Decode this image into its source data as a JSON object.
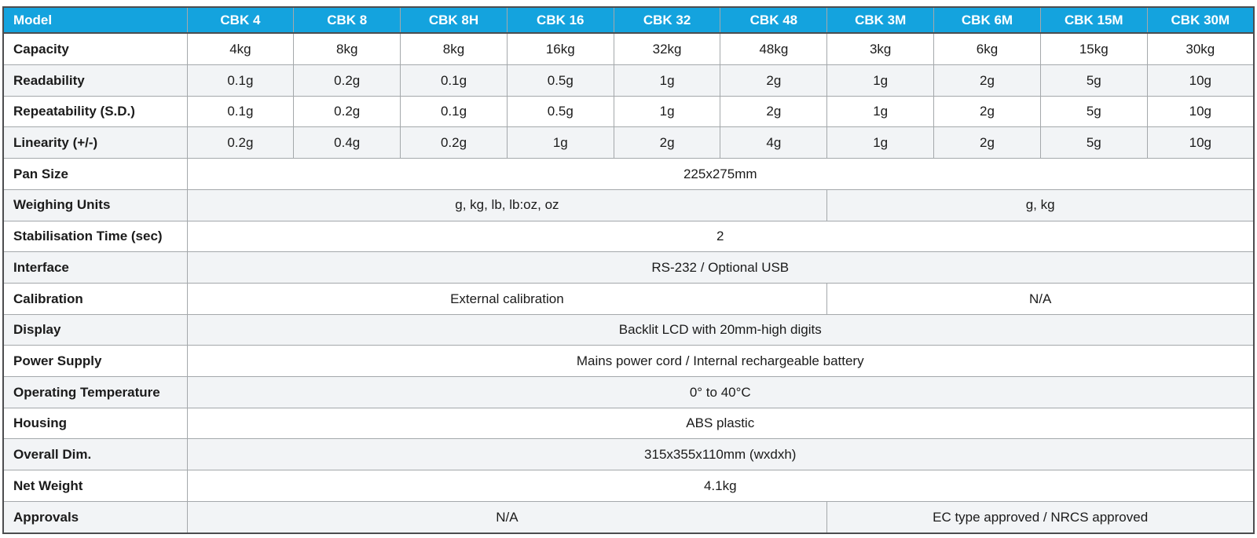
{
  "table": {
    "header": {
      "label": "Model",
      "models": [
        "CBK 4",
        "CBK 8",
        "CBK 8H",
        "CBK 16",
        "CBK 32",
        "CBK 48",
        "CBK 3M",
        "CBK 6M",
        "CBK 15M",
        "CBK 30M"
      ]
    },
    "spec_rows": [
      {
        "label": "Capacity",
        "type": "per-model",
        "values": [
          "4kg",
          "8kg",
          "8kg",
          "16kg",
          "32kg",
          "48kg",
          "3kg",
          "6kg",
          "15kg",
          "30kg"
        ]
      },
      {
        "label": "Readability",
        "type": "per-model",
        "values": [
          "0.1g",
          "0.2g",
          "0.1g",
          "0.5g",
          "1g",
          "2g",
          "1g",
          "2g",
          "5g",
          "10g"
        ]
      },
      {
        "label": "Repeatability (S.D.)",
        "type": "per-model",
        "values": [
          "0.1g",
          "0.2g",
          "0.1g",
          "0.5g",
          "1g",
          "2g",
          "1g",
          "2g",
          "5g",
          "10g"
        ]
      },
      {
        "label": "Linearity (+/-)",
        "type": "per-model",
        "values": [
          "0.2g",
          "0.4g",
          "0.2g",
          "1g",
          "2g",
          "4g",
          "1g",
          "2g",
          "5g",
          "10g"
        ]
      },
      {
        "label": "Pan Size",
        "type": "full",
        "value": "225x275mm"
      },
      {
        "label": "Weighing Units",
        "type": "split",
        "left": "g, kg, lb, lb:oz, oz",
        "right": "g, kg"
      },
      {
        "label": "Stabilisation Time (sec)",
        "type": "full",
        "value": "2"
      },
      {
        "label": "Interface",
        "type": "full",
        "value": "RS-232 / Optional USB"
      },
      {
        "label": "Calibration",
        "type": "split",
        "left": "External calibration",
        "right": "N/A"
      },
      {
        "label": "Display",
        "type": "full",
        "value": "Backlit LCD with 20mm-high digits"
      },
      {
        "label": "Power Supply",
        "type": "full",
        "value": "Mains power cord / Internal rechargeable battery"
      },
      {
        "label": "Operating Temperature",
        "type": "full",
        "value": "0° to 40°C"
      },
      {
        "label": "Housing",
        "type": "full",
        "value": "ABS plastic"
      },
      {
        "label": "Overall Dim.",
        "type": "full",
        "value": "315x355x110mm (wxdxh)"
      },
      {
        "label": "Net Weight",
        "type": "full",
        "value": "4.1kg"
      },
      {
        "label": "Approvals",
        "type": "split",
        "left": "N/A",
        "right": "EC type approved / NRCS approved"
      }
    ]
  },
  "colors": {
    "header_bg": "#14a3de",
    "header_text": "#ffffff",
    "row_bg": "#ffffff",
    "row_alt_bg": "#f2f4f6",
    "border_outer": "#4c4d4f",
    "border_inner": "#a4a8ab",
    "text": "#1b1b1b"
  }
}
